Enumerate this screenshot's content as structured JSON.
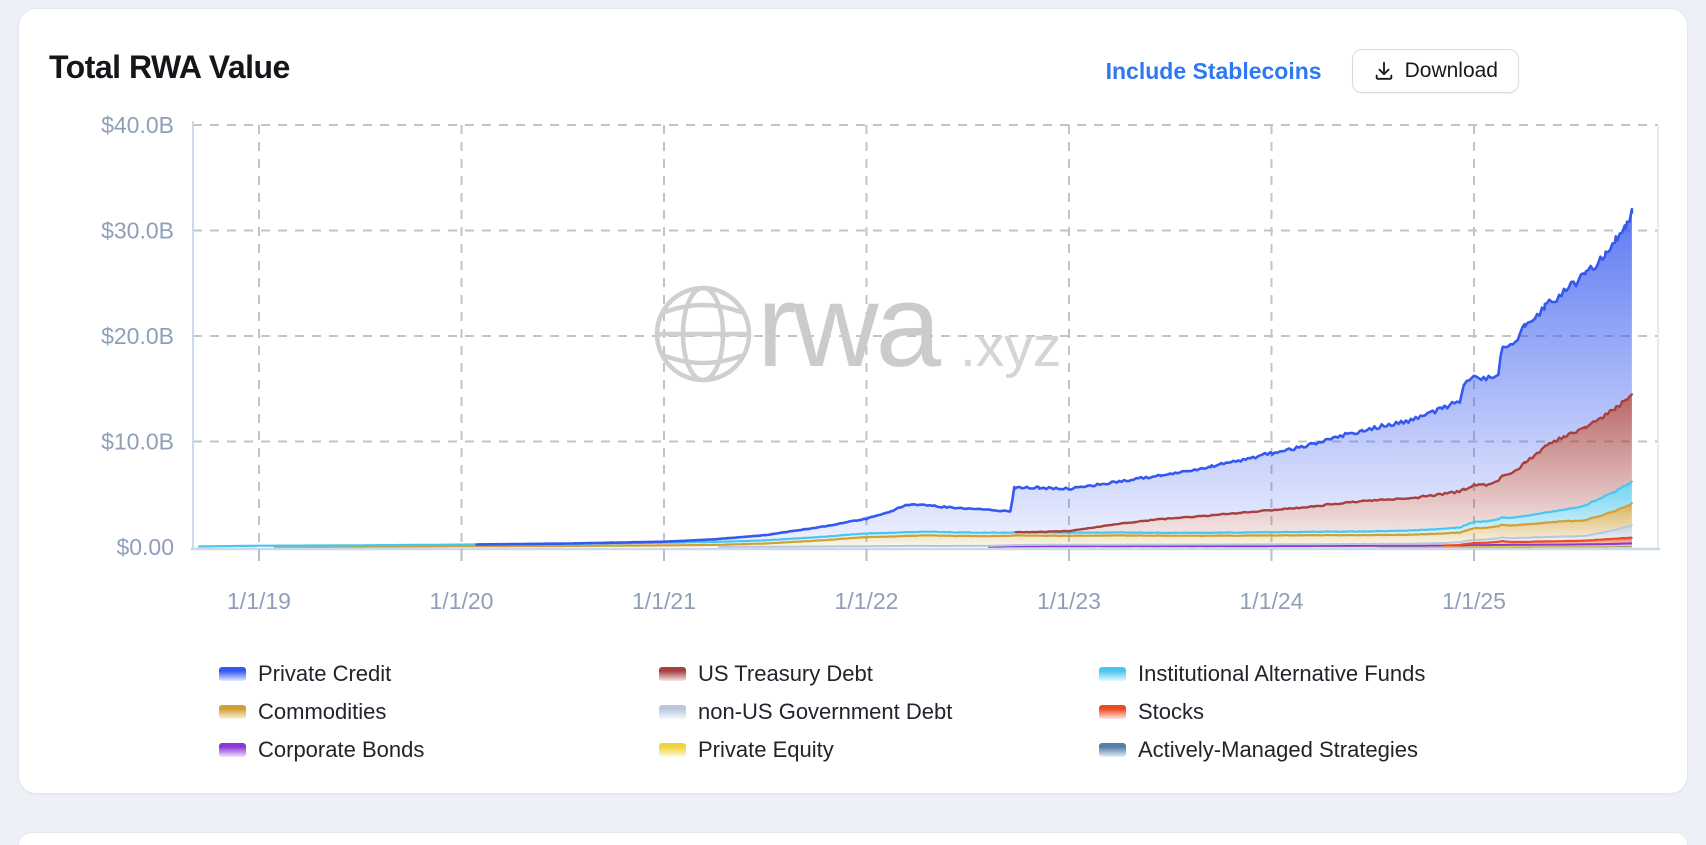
{
  "page": {
    "background": "#edf0f6"
  },
  "header": {
    "title": "Total RWA Value",
    "include_stablecoins_label": "Include Stablecoins",
    "download_label": "Download",
    "link_color": "#2e78f3"
  },
  "watermark": {
    "brand": "rwa",
    "suffix": ".xyz",
    "color": "#cbcbcb"
  },
  "chart_data": {
    "type": "area",
    "stacked": true,
    "title": "Total RWA Value",
    "unit": "USD billions",
    "grid": true,
    "legend_position": "bottom",
    "x_range": [
      2018.7,
      2025.78
    ],
    "y_range": [
      0,
      40
    ],
    "x_axis": {
      "tick_years": [
        2019,
        2020,
        2021,
        2022,
        2023,
        2024,
        2025
      ],
      "tick_labels": [
        "1/1/19",
        "1/1/20",
        "1/1/21",
        "1/1/22",
        "1/1/23",
        "1/1/24",
        "1/1/25"
      ]
    },
    "y_axis": {
      "tick_values": [
        0,
        10,
        20,
        30,
        40
      ],
      "tick_labels": [
        "$0.00",
        "$10.0B",
        "$20.0B",
        "$30.0B",
        "$40.0B"
      ]
    },
    "stack_order": "bottom-to-top",
    "legend_order": "top-of-stack-first",
    "x": [
      2018.7,
      2019.0,
      2019.5,
      2020.0,
      2020.5,
      2021.0,
      2021.25,
      2021.5,
      2021.75,
      2022.0,
      2022.1,
      2022.2,
      2022.3,
      2022.45,
      2022.6,
      2022.71,
      2022.73,
      2022.85,
      2023.0,
      2023.2,
      2023.45,
      2023.7,
      2024.0,
      2024.2,
      2024.45,
      2024.7,
      2024.85,
      2024.93,
      2024.95,
      2025.0,
      2025.06,
      2025.12,
      2025.14,
      2025.18,
      2025.25,
      2025.35,
      2025.45,
      2025.55,
      2025.65,
      2025.7,
      2025.75,
      2025.78
    ],
    "series": [
      {
        "name": "Actively-Managed Strategies",
        "color": "#537fa8",
        "values": [
          0,
          0,
          0,
          0,
          0,
          0,
          0,
          0,
          0,
          0,
          0,
          0,
          0,
          0,
          0,
          0,
          0,
          0,
          0,
          0,
          0,
          0,
          0,
          0,
          0,
          0.01,
          0.02,
          0.02,
          0.02,
          0.03,
          0.03,
          0.03,
          0.03,
          0.03,
          0.03,
          0.04,
          0.04,
          0.04,
          0.04,
          0.05,
          0.05,
          0.05
        ]
      },
      {
        "name": "Private Equity",
        "color": "#f2d43c",
        "values": [
          0,
          0,
          0,
          0,
          0,
          0,
          0,
          0,
          0,
          0,
          0,
          0,
          0,
          0,
          0,
          0,
          0.01,
          0.01,
          0.02,
          0.02,
          0.02,
          0.02,
          0.02,
          0.02,
          0.03,
          0.03,
          0.03,
          0.03,
          0.03,
          0.05,
          0.05,
          0.05,
          0.05,
          0.05,
          0.06,
          0.06,
          0.06,
          0.06,
          0.07,
          0.07,
          0.08,
          0.08
        ]
      },
      {
        "name": "Corporate Bonds",
        "color": "#8c39d9",
        "values": [
          0,
          0,
          0,
          0,
          0,
          0,
          0,
          0,
          0,
          0,
          0,
          0,
          0,
          0,
          0,
          0.06,
          0.06,
          0.07,
          0.07,
          0.07,
          0.07,
          0.07,
          0.07,
          0.08,
          0.08,
          0.08,
          0.09,
          0.09,
          0.09,
          0.1,
          0.1,
          0.11,
          0.11,
          0.12,
          0.12,
          0.13,
          0.13,
          0.15,
          0.17,
          0.18,
          0.2,
          0.22
        ]
      },
      {
        "name": "Stocks",
        "color": "#ee4a22",
        "values": [
          0,
          0,
          0,
          0,
          0,
          0,
          0,
          0,
          0,
          0,
          0,
          0,
          0,
          0,
          0,
          0,
          0,
          0,
          0,
          0,
          0,
          0,
          0,
          0,
          0,
          0,
          0,
          0.05,
          0.12,
          0.2,
          0.22,
          0.3,
          0.38,
          0.27,
          0.27,
          0.3,
          0.33,
          0.35,
          0.45,
          0.48,
          0.52,
          0.55
        ]
      },
      {
        "name": "non-US Government Debt",
        "color": "#b7c8dd",
        "values": [
          0,
          0,
          0,
          0,
          0,
          0,
          0,
          0.03,
          0.05,
          0.08,
          0.09,
          0.1,
          0.1,
          0.1,
          0.11,
          0.11,
          0.12,
          0.12,
          0.12,
          0.13,
          0.14,
          0.15,
          0.16,
          0.17,
          0.18,
          0.2,
          0.24,
          0.26,
          0.27,
          0.3,
          0.31,
          0.33,
          0.34,
          0.36,
          0.4,
          0.42,
          0.44,
          0.45,
          0.7,
          0.85,
          1.05,
          1.15
        ]
      },
      {
        "name": "Commodities",
        "color": "#d0a035",
        "values": [
          0,
          0,
          0.02,
          0.08,
          0.1,
          0.15,
          0.2,
          0.3,
          0.55,
          0.85,
          0.9,
          0.95,
          1.0,
          0.95,
          0.92,
          0.9,
          0.9,
          0.88,
          0.85,
          0.88,
          0.85,
          0.83,
          0.85,
          0.85,
          0.83,
          0.85,
          0.9,
          0.92,
          0.95,
          1.1,
          1.1,
          1.15,
          1.2,
          1.2,
          1.25,
          1.35,
          1.45,
          1.5,
          1.7,
          1.8,
          1.95,
          2.05
        ]
      },
      {
        "name": "Institutional Alternative Funds",
        "color": "#49c6f0",
        "values": [
          0.05,
          0.12,
          0.14,
          0.15,
          0.2,
          0.25,
          0.28,
          0.3,
          0.32,
          0.35,
          0.35,
          0.35,
          0.35,
          0.33,
          0.32,
          0.3,
          0.3,
          0.3,
          0.3,
          0.28,
          0.27,
          0.28,
          0.3,
          0.32,
          0.35,
          0.4,
          0.45,
          0.48,
          0.52,
          0.6,
          0.62,
          0.65,
          0.7,
          0.72,
          0.8,
          0.95,
          1.1,
          1.4,
          1.75,
          1.85,
          2.0,
          2.1
        ]
      },
      {
        "name": "US Treasury Debt",
        "color": "#a84040",
        "values": [
          0,
          0,
          0,
          0,
          0,
          0,
          0,
          0,
          0,
          0,
          0,
          0,
          0,
          0,
          0,
          0,
          0,
          0.05,
          0.15,
          0.7,
          1.3,
          1.65,
          2.1,
          2.4,
          2.9,
          3.1,
          3.3,
          3.4,
          3.45,
          3.5,
          3.45,
          3.6,
          3.9,
          4.1,
          5.0,
          6.2,
          7.0,
          7.3,
          7.7,
          7.85,
          8.0,
          8.1
        ]
      },
      {
        "name": "Private Credit",
        "color": "#3558ef",
        "values": [
          0,
          0,
          0,
          0,
          0.02,
          0.1,
          0.25,
          0.5,
          0.9,
          1.4,
          1.9,
          2.6,
          2.5,
          2.3,
          2.2,
          2.0,
          4.2,
          4.2,
          4.0,
          4.0,
          4.1,
          4.6,
          5.4,
          5.9,
          6.7,
          7.4,
          8.2,
          8.6,
          10.1,
          10.2,
          10.0,
          10.2,
          12.3,
          12.0,
          12.8,
          13.2,
          13.8,
          14.5,
          15.2,
          15.8,
          16.5,
          17.3
        ]
      }
    ]
  }
}
